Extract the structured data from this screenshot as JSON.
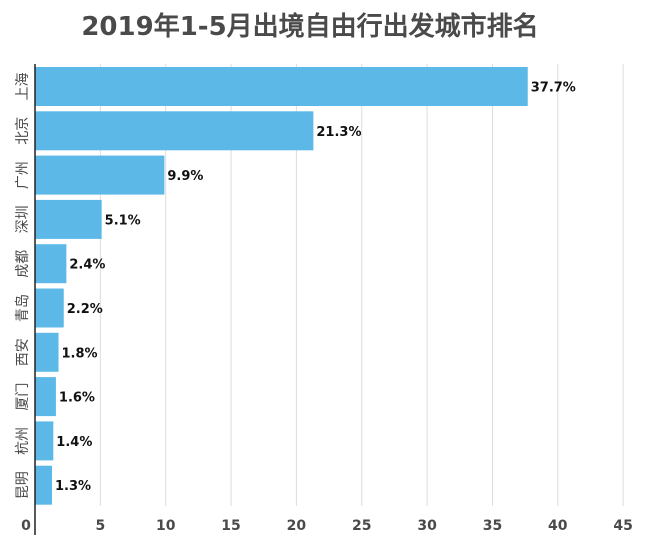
{
  "chart_data": {
    "type": "bar",
    "orientation": "horizontal",
    "title": "2019年1-5月出境自由行出发城市排名",
    "xlabel": "",
    "ylabel": "",
    "categories": [
      "上海",
      "北京",
      "广州",
      "深圳",
      "成都",
      "青岛",
      "西安",
      "厦门",
      "杭州",
      "昆明"
    ],
    "values": [
      37.7,
      21.3,
      9.9,
      5.1,
      2.4,
      2.2,
      1.8,
      1.6,
      1.4,
      1.3
    ],
    "data_labels": [
      "37.7%",
      "21.3%",
      "9.9%",
      "5.1%",
      "2.4%",
      "2.2%",
      "1.8%",
      "1.6%",
      "1.4%",
      "1.3%"
    ],
    "xlim": [
      0,
      45
    ],
    "xticks": [
      "0",
      "5",
      "10",
      "15",
      "20",
      "25",
      "30",
      "35",
      "40",
      "45"
    ],
    "grid": true,
    "legend": "none",
    "bar_color": "#5cb9e7"
  }
}
